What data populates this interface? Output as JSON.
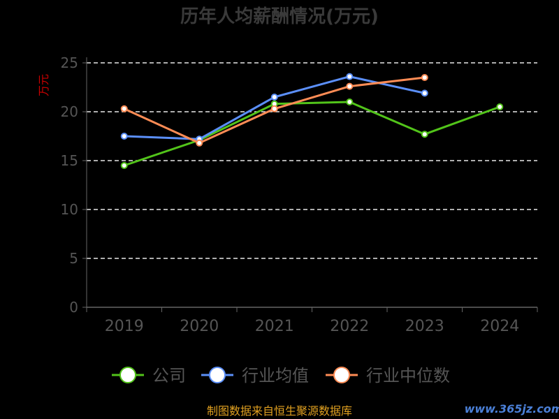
{
  "chart_data": {
    "type": "line",
    "title": "历年人均薪酬情况(万元)",
    "ylabel": "万元",
    "xlabel": "",
    "categories": [
      "2019",
      "2020",
      "2021",
      "2022",
      "2023",
      "2024"
    ],
    "ylim": [
      0,
      25
    ],
    "yticks": [
      0,
      5,
      10,
      15,
      20,
      25
    ],
    "grid": true,
    "legend_position": "bottom",
    "series": [
      {
        "name": "公司",
        "color": "#52c41a",
        "values": [
          14.5,
          17.1,
          20.8,
          21.0,
          17.7,
          20.5
        ]
      },
      {
        "name": "行业均值",
        "color": "#5b8ff9",
        "values": [
          17.5,
          17.2,
          21.5,
          23.6,
          21.9,
          null
        ]
      },
      {
        "name": "行业中位数",
        "color": "#ff8c55",
        "values": [
          20.3,
          16.8,
          20.3,
          22.6,
          23.5,
          null
        ]
      }
    ]
  },
  "source": "制图数据来自恒生聚源数据库",
  "watermark": "www.365jz.com"
}
